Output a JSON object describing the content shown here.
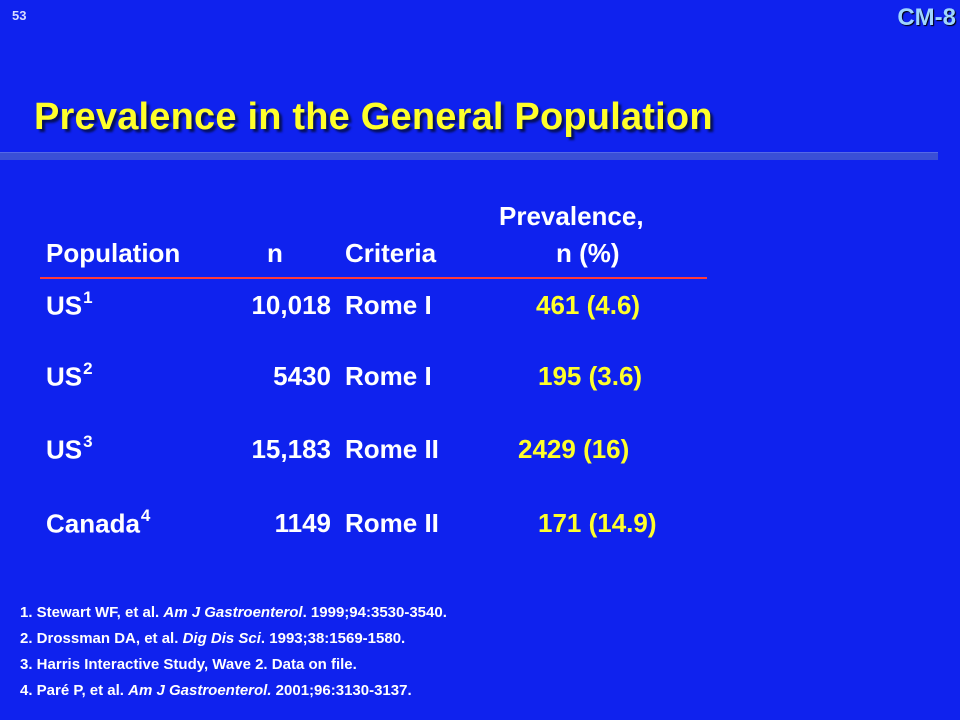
{
  "slide": {
    "number": "53",
    "code": "CM-8",
    "title": "Prevalence in the General Population"
  },
  "table": {
    "headers": {
      "population": "Population",
      "n": "n",
      "criteria": "Criteria",
      "prevalence_line1": "Prevalence,",
      "prevalence_line2": "n (%)"
    },
    "rows": [
      {
        "population": "US",
        "ref": "1",
        "n": "10,018",
        "criteria": "Rome I",
        "prevalence": "461 (4.6)"
      },
      {
        "population": "US",
        "ref": "2",
        "n": "5430",
        "criteria": "Rome I",
        "prevalence": "195 (3.6)"
      },
      {
        "population": "US",
        "ref": "3",
        "n": "15,183",
        "criteria": "Rome II",
        "prevalence": "2429 (16)"
      },
      {
        "population": "Canada",
        "ref": "4",
        "n": "1149",
        "criteria": "Rome II",
        "prevalence": "171 (14.9)"
      }
    ]
  },
  "references": [
    {
      "prefix": "1. Stewart WF, et al. ",
      "journal": "Am J Gastroenterol",
      "suffix": ". 1999;94:3530-3540."
    },
    {
      "prefix": "2. Drossman DA, et al. ",
      "journal": "Dig Dis Sci",
      "suffix": ". 1993;38:1569-1580."
    },
    {
      "prefix": "3. Harris Interactive Study, Wave 2. Data on file.",
      "journal": "",
      "suffix": ""
    },
    {
      "prefix": "4. Paré P, et al. ",
      "journal": "Am J Gastroenterol.",
      "suffix": " 2001;96:3130-3137."
    }
  ]
}
